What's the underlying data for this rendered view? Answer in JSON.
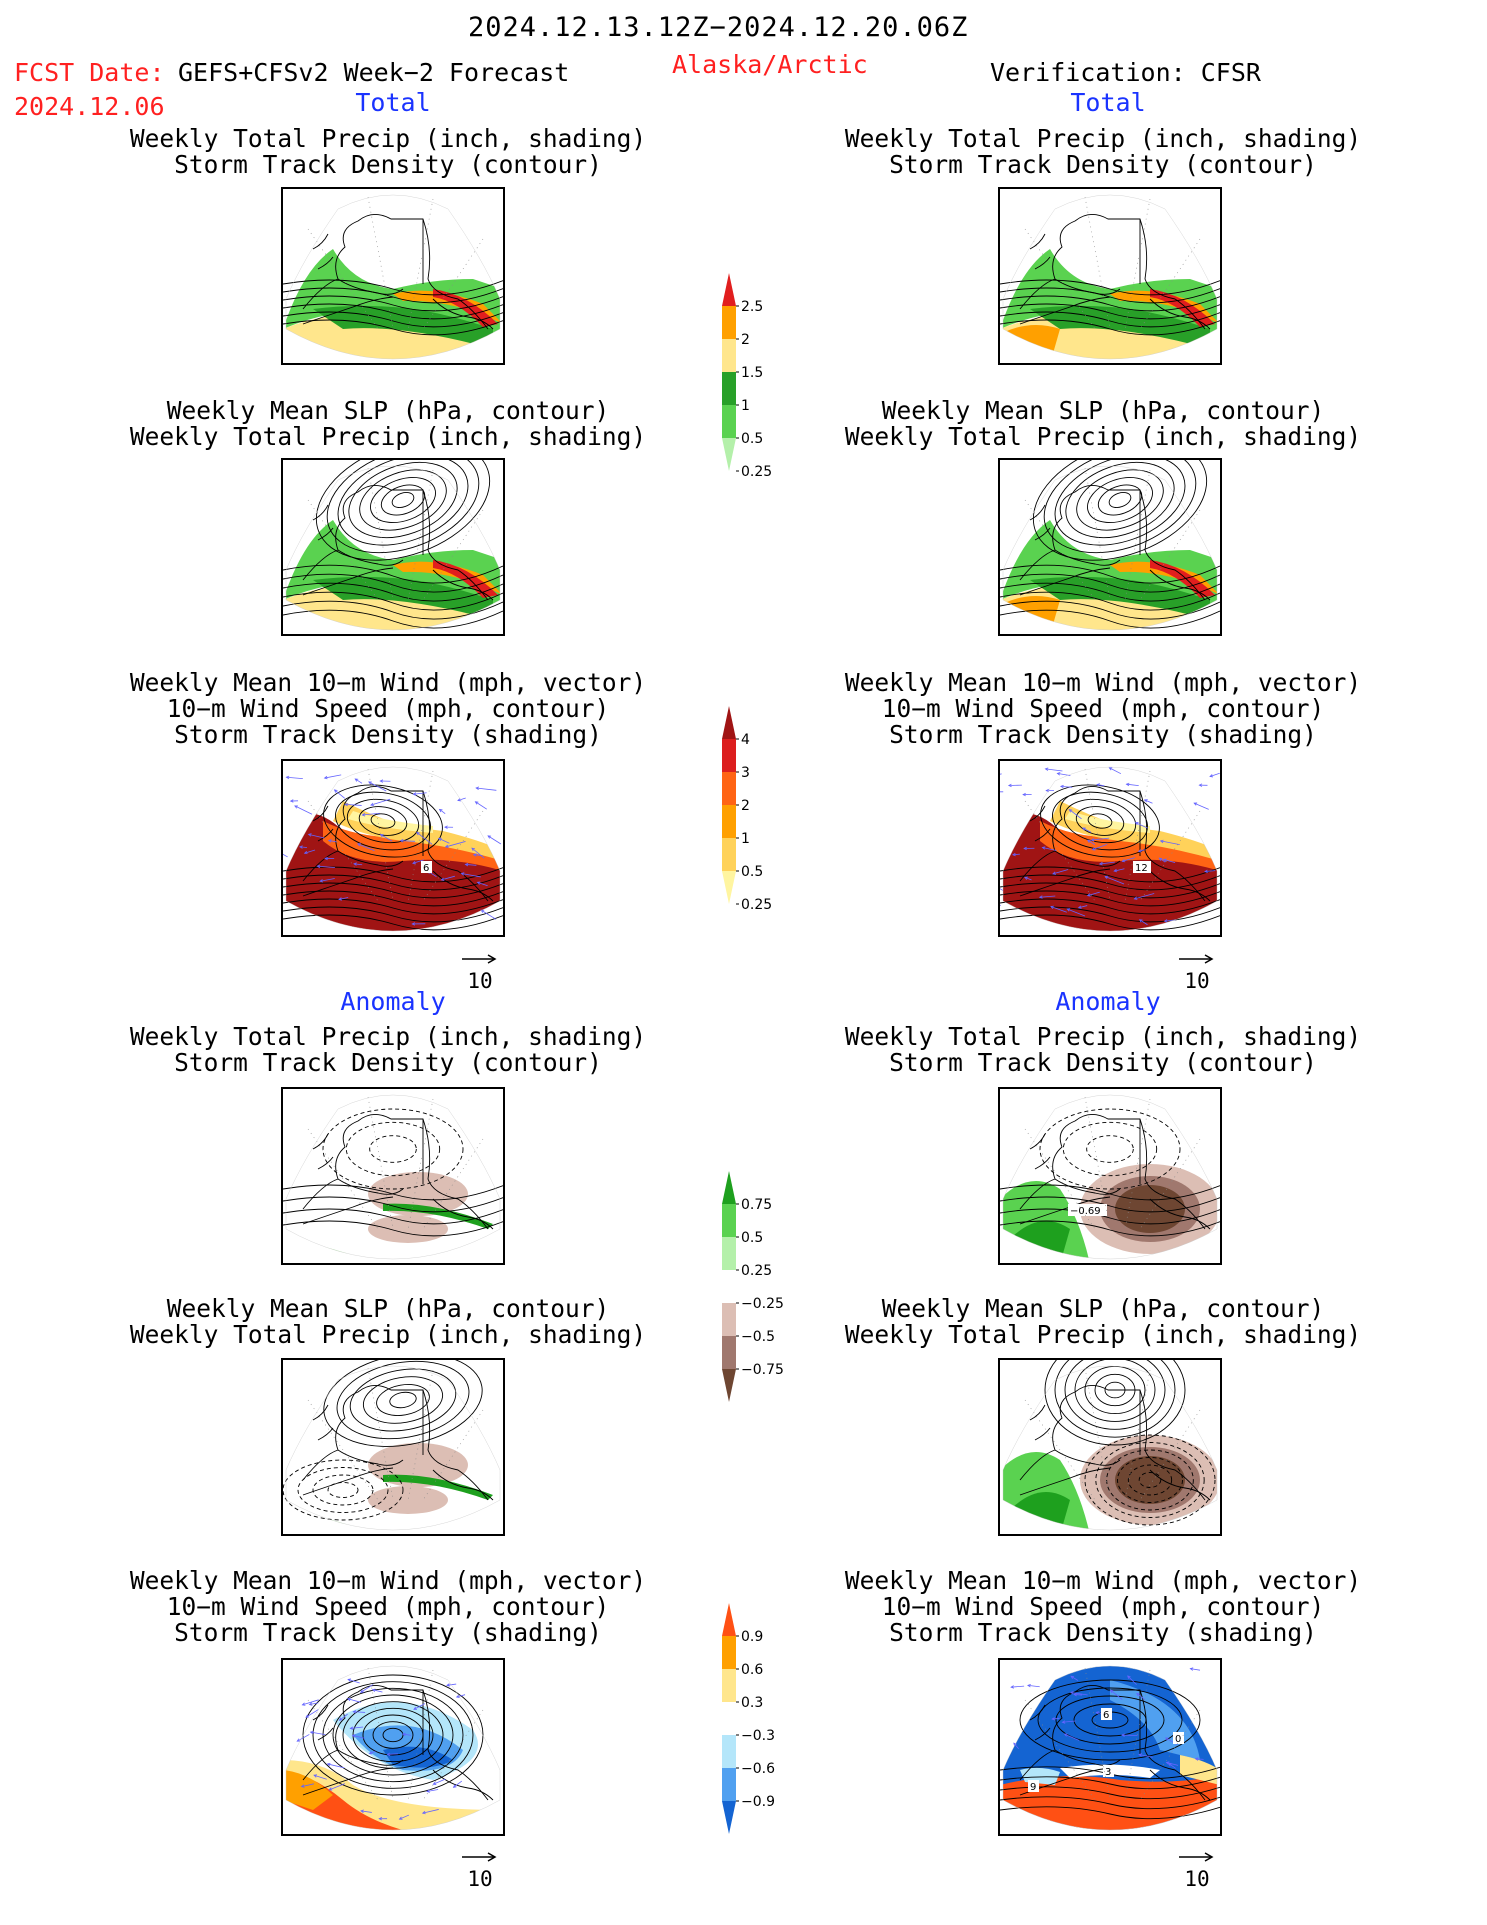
{
  "header": {
    "date_range": "2024.12.13.12Z−2024.12.20.06Z",
    "fcst_label": "FCST Date:",
    "model": "GEFS+CFSv2 Week−2 Forecast",
    "region": "Alaska/Arctic",
    "verification": "Verification: CFSR",
    "fcst_date": "2024.12.06"
  },
  "sections": {
    "total": "Total",
    "anomaly": "Anomaly"
  },
  "panel_titles": {
    "precip_storm": [
      "Weekly Total Precip (inch, shading)",
      "Storm Track Density (contour)"
    ],
    "slp_precip": [
      "Weekly Mean SLP (hPa, contour)",
      "Weekly Total Precip (inch, shading)"
    ],
    "wind_storm": [
      "Weekly Mean 10−m Wind (mph, vector)",
      "10−m Wind Speed (mph, contour)",
      "Storm Track Density (shading)"
    ]
  },
  "vector_reference": "10",
  "contour_labels": {
    "fcst_total_wind": "6",
    "verif_total_wind": "12",
    "verif_anom_precip": "−0.69",
    "verif_anom_wind_a": "6",
    "verif_anom_wind_b": "0",
    "verif_anom_wind_c": "3",
    "verif_anom_wind_d": "9"
  },
  "chart_data": [
    {
      "type": "heatmap",
      "name": "precip_total_colorbar",
      "unit": "inch",
      "levels": [
        0.25,
        0.5,
        1,
        1.5,
        2,
        2.5
      ],
      "tick_labels": [
        "2.5",
        "2",
        "1.5",
        "1",
        "0.5",
        "0.25"
      ],
      "colors": [
        "#b4f0aa",
        "#5ad250",
        "#28a028",
        "#ffe68c",
        "#ffa000",
        "#e11e1e"
      ]
    },
    {
      "type": "heatmap",
      "name": "storm_density_total_colorbar",
      "levels": [
        0.25,
        0.5,
        1,
        2,
        3,
        4
      ],
      "tick_labels": [
        "4",
        "3",
        "2",
        "1",
        "0.5",
        "0.25"
      ],
      "colors": [
        "#fff5a0",
        "#ffd25a",
        "#ffa000",
        "#ff6414",
        "#dc1e1e",
        "#a01414"
      ]
    },
    {
      "type": "heatmap",
      "name": "precip_anomaly_colorbar",
      "unit": "inch",
      "levels": [
        -0.75,
        -0.5,
        -0.25,
        0.25,
        0.5,
        0.75
      ],
      "tick_labels": [
        "0.75",
        "0.5",
        "0.25",
        "−0.25",
        "−0.5",
        "−0.75"
      ],
      "colors": [
        "#6e4632",
        "#a0786e",
        "#dcbeb4",
        "#ffffff",
        "#b4f0aa",
        "#5ad250",
        "#1ea01e"
      ]
    },
    {
      "type": "heatmap",
      "name": "storm_density_anomaly_colorbar",
      "levels": [
        -0.9,
        -0.6,
        -0.3,
        0.3,
        0.6,
        0.9
      ],
      "tick_labels": [
        "0.9",
        "0.6",
        "0.3",
        "−0.3",
        "−0.6",
        "−0.9"
      ],
      "colors": [
        "#1464d2",
        "#50a0f0",
        "#b4e6fa",
        "#ffffff",
        "#ffe68c",
        "#ffa000",
        "#ff5014"
      ]
    }
  ]
}
